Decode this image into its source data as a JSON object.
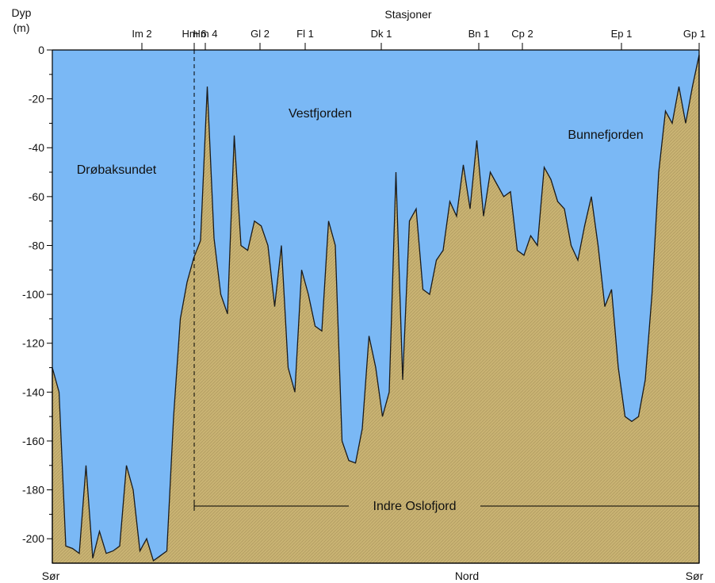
{
  "chart_data": {
    "type": "area",
    "y_axis_title": [
      "Dyp",
      "(m)"
    ],
    "top_axis_title": "Stasjoner",
    "ylim": [
      -210,
      0
    ],
    "y_ticks": [
      0,
      -20,
      -40,
      -60,
      -80,
      -100,
      -120,
      -140,
      -160,
      -180,
      -200
    ],
    "stations": [
      "Im 2",
      "Hm 6",
      "Hm 4",
      "Gl 2",
      "Fl 1",
      "Dk 1",
      "Bn 1",
      "Cp 2",
      "Ep 1",
      "Gp 1"
    ],
    "bottom_labels": {
      "left": "Sør",
      "center": "Nord",
      "right": "Sør"
    },
    "region_labels": [
      "Drøbaksundet",
      "Vestfjorden",
      "Bunnefjorden"
    ],
    "section_label": "Indre Oslofjord",
    "colors": {
      "water": "#7ab8f5",
      "seabed": "#c9b373",
      "outline": "#1a1a1a"
    },
    "profile_depths": [
      -130,
      -140,
      -203,
      -204,
      -206,
      -170,
      -208,
      -197,
      -206,
      -205,
      -203,
      -170,
      -180,
      -205,
      -200,
      -209,
      -207,
      -205,
      -150,
      -110,
      -95,
      -85,
      -78,
      -15,
      -77,
      -100,
      -108,
      -35,
      -80,
      -82,
      -70,
      -72,
      -80,
      -105,
      -80,
      -130,
      -140,
      -90,
      -100,
      -113,
      -115,
      -70,
      -80,
      -160,
      -168,
      -169,
      -155,
      -117,
      -130,
      -150,
      -140,
      -50,
      -135,
      -70,
      -65,
      -98,
      -100,
      -86,
      -82,
      -62,
      -68,
      -47,
      -65,
      -37,
      -68,
      -50,
      -55,
      -60,
      -58,
      -82,
      -84,
      -76,
      -80,
      -48,
      -53,
      -62,
      -65,
      -80,
      -86,
      -72,
      -60,
      -80,
      -105,
      -98,
      -130,
      -150,
      -152,
      -150,
      -135,
      -100,
      -50,
      -25,
      -30,
      -15,
      -30,
      -15,
      -2
    ]
  }
}
